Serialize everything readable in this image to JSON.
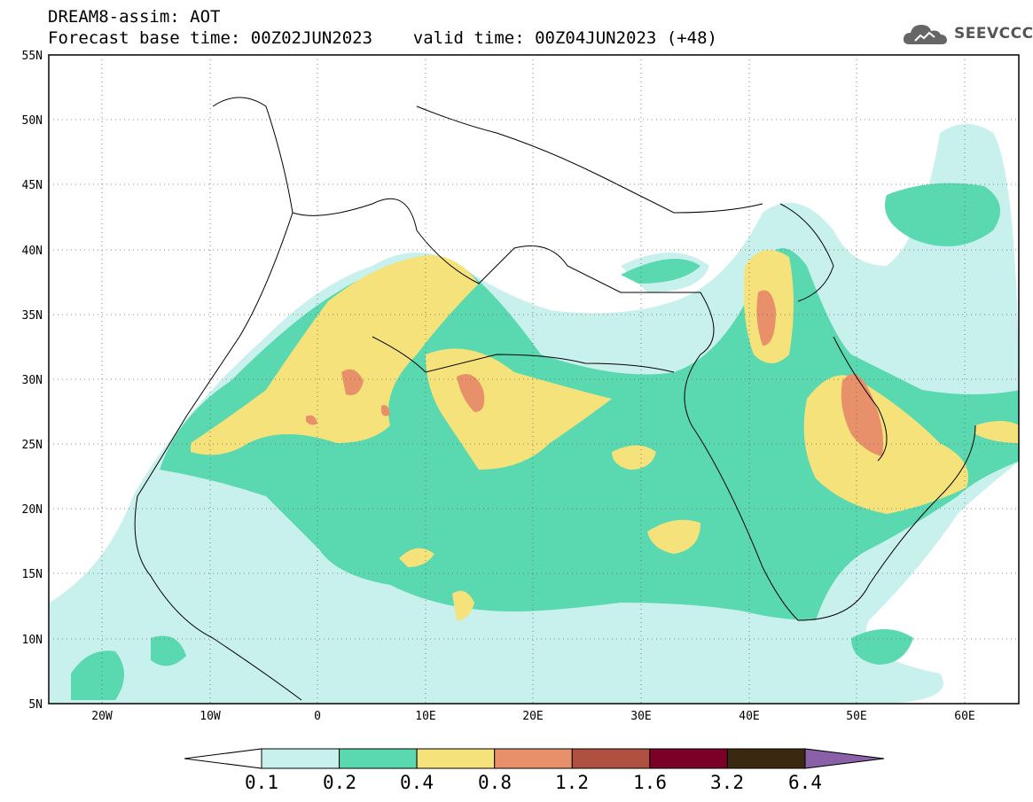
{
  "header": {
    "line1": "DREAM8-assim: AOT",
    "line2": "Forecast base time: 00Z02JUN2023    valid time: 00Z04JUN2023 (+48)"
  },
  "logo": {
    "text": "SEEVCCC",
    "icon": "cloud-icon"
  },
  "map": {
    "lat_labels": [
      "55N",
      "50N",
      "45N",
      "40N",
      "35N",
      "30N",
      "25N",
      "20N",
      "15N",
      "10N",
      "5N"
    ],
    "lon_labels": [
      "20W",
      "10W",
      "0",
      "10E",
      "20E",
      "30E",
      "40E",
      "50E",
      "60E"
    ],
    "lon_range": [
      -25,
      65
    ],
    "lat_range": [
      5,
      55
    ],
    "grid": "dotted"
  },
  "colorbar": {
    "ticks": [
      "0.1",
      "0.2",
      "0.4",
      "0.8",
      "1.2",
      "1.6",
      "3.2",
      "6.4"
    ],
    "colors": [
      "#c8f0ec",
      "#5ad8b0",
      "#f5e27a",
      "#e8906a",
      "#b05040",
      "#7a0028",
      "#3a2810"
    ],
    "under_color": "#ffffff",
    "over_color": "#8a60a8"
  }
}
